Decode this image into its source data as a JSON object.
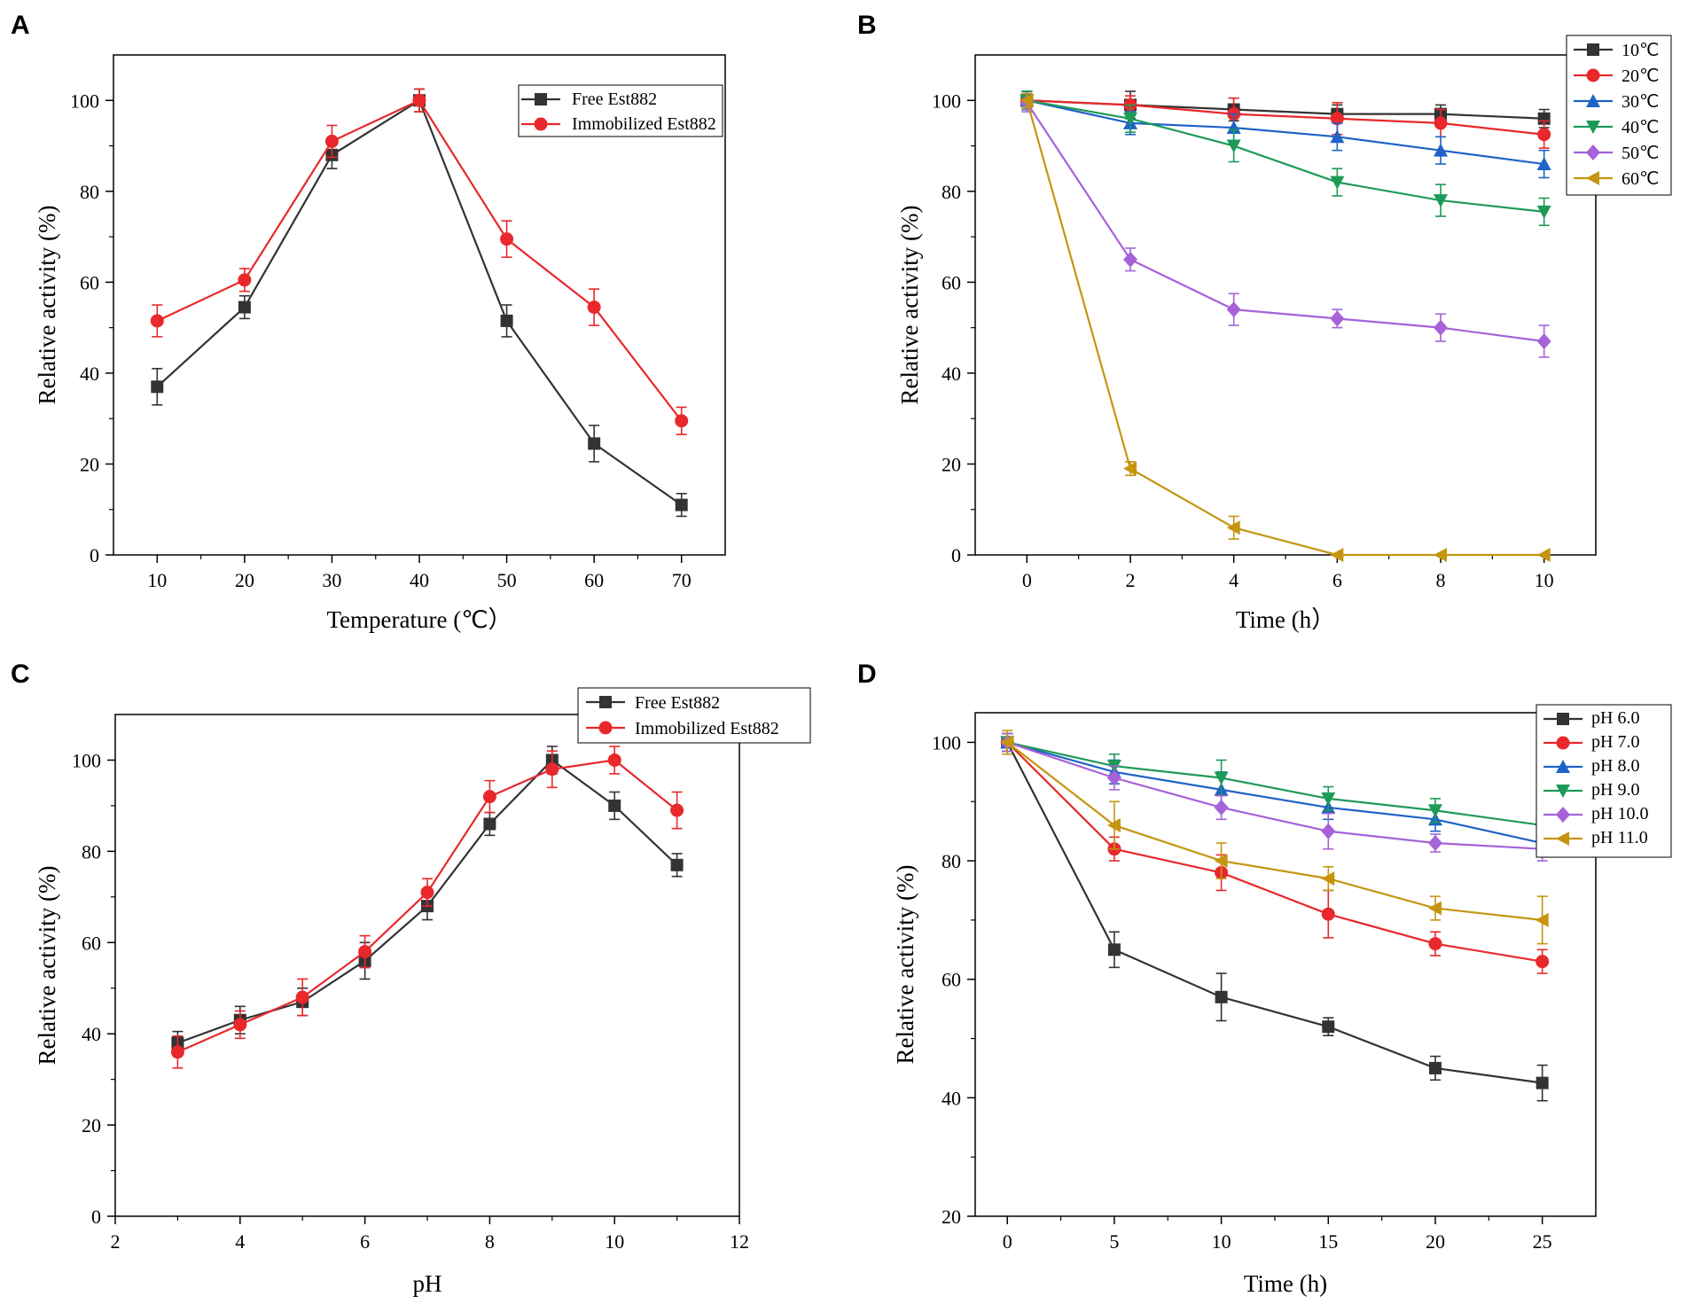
{
  "chart_data": [
    {
      "panel": "A",
      "type": "line",
      "xlabel": "Temperature (℃）",
      "ylabel": "Relative activity (%)",
      "xlim": [
        5,
        75
      ],
      "ylim": [
        0,
        110
      ],
      "xticks": [
        10,
        20,
        30,
        40,
        50,
        60,
        70
      ],
      "yticks": [
        0,
        20,
        40,
        60,
        80,
        100
      ],
      "x": [
        10,
        20,
        30,
        40,
        50,
        60,
        70
      ],
      "legend_position": "top-right-inside",
      "series": [
        {
          "name": "Free Est882",
          "color": "#333333",
          "marker": "square",
          "values": [
            37,
            54.5,
            88,
            100,
            51.5,
            24.5,
            11
          ],
          "errors": [
            4,
            2.5,
            3,
            2.5,
            3.5,
            4,
            2.5
          ]
        },
        {
          "name": "Immobilized Est882",
          "color": "#e8282b",
          "marker": "circle",
          "values": [
            51.5,
            60.5,
            91,
            100,
            69.5,
            54.5,
            29.5
          ],
          "errors": [
            3.5,
            2.5,
            3.5,
            2.5,
            4,
            4,
            3
          ]
        }
      ]
    },
    {
      "panel": "B",
      "type": "line",
      "xlabel": "Time (h）",
      "ylabel": "Relative activity (%)",
      "xlim": [
        -1,
        11
      ],
      "ylim": [
        0,
        110
      ],
      "xticks": [
        0,
        2,
        4,
        6,
        8,
        10
      ],
      "yticks": [
        0,
        20,
        40,
        60,
        80,
        100
      ],
      "x": [
        0,
        2,
        4,
        6,
        8,
        10
      ],
      "legend_position": "top-right",
      "series": [
        {
          "name": "10℃",
          "color": "#333333",
          "marker": "square",
          "values": [
            100,
            99,
            98,
            97,
            97,
            96
          ],
          "errors": [
            2,
            3,
            2.5,
            2,
            2,
            2
          ]
        },
        {
          "name": "20℃",
          "color": "#e8282b",
          "marker": "circle",
          "values": [
            100,
            99,
            97,
            96,
            95,
            92.5
          ],
          "errors": [
            1.5,
            2,
            3.5,
            3.5,
            3,
            3
          ]
        },
        {
          "name": "30℃",
          "color": "#1f63c6",
          "marker": "triangle-up",
          "values": [
            100,
            95,
            94,
            92,
            89,
            86
          ],
          "errors": [
            2,
            2.5,
            3,
            3,
            3,
            3
          ]
        },
        {
          "name": "40℃",
          "color": "#1e9a57",
          "marker": "triangle-down",
          "values": [
            100,
            96,
            90,
            82,
            78,
            75.5
          ],
          "errors": [
            2,
            3,
            3.5,
            3,
            3.5,
            3
          ]
        },
        {
          "name": "50℃",
          "color": "#a662d9",
          "marker": "diamond",
          "values": [
            99.5,
            65,
            54,
            52,
            50,
            47
          ],
          "errors": [
            2,
            2.5,
            3.5,
            2,
            3,
            3.5
          ]
        },
        {
          "name": "60℃",
          "color": "#c59511",
          "marker": "triangle-left",
          "values": [
            100,
            19,
            6,
            0,
            0,
            0
          ],
          "errors": [
            1.5,
            1.5,
            2.5,
            0,
            0,
            0
          ]
        }
      ]
    },
    {
      "panel": "C",
      "type": "line",
      "xlabel": "pH",
      "ylabel": "Relative activity (%)",
      "xlim": [
        2,
        12
      ],
      "ylim": [
        0,
        110
      ],
      "xticks": [
        2,
        4,
        6,
        8,
        10,
        12
      ],
      "yticks": [
        0,
        20,
        40,
        60,
        80,
        100
      ],
      "x": [
        3,
        4,
        5,
        6,
        7,
        8,
        9,
        10,
        11
      ],
      "legend_position": "top-right",
      "series": [
        {
          "name": "Free Est882",
          "color": "#333333",
          "marker": "square",
          "values": [
            38,
            43,
            47,
            56,
            68,
            86,
            100,
            90,
            77
          ],
          "errors": [
            2.5,
            3,
            3,
            4,
            3,
            2.5,
            3,
            3,
            2.5
          ]
        },
        {
          "name": "Immobilized Est882",
          "color": "#e8282b",
          "marker": "circle",
          "values": [
            36,
            42,
            48,
            58,
            71,
            92,
            98,
            100,
            89
          ],
          "errors": [
            3.5,
            3,
            4,
            3.5,
            3,
            3.5,
            4,
            3,
            4
          ]
        }
      ]
    },
    {
      "panel": "D",
      "type": "line",
      "xlabel": "Time (h)",
      "ylabel": "Relative activity (%)",
      "xlim": [
        -1.5,
        27.5
      ],
      "ylim": [
        20,
        105
      ],
      "xticks": [
        0,
        5,
        10,
        15,
        20,
        25
      ],
      "yticks": [
        20,
        40,
        60,
        80,
        100
      ],
      "x": [
        0,
        5,
        10,
        15,
        20,
        25
      ],
      "legend_position": "top-right",
      "series": [
        {
          "name": "pH 6.0",
          "color": "#333333",
          "marker": "square",
          "values": [
            100,
            65,
            57,
            52,
            45,
            42.5
          ],
          "errors": [
            1.5,
            3,
            4,
            1.5,
            2,
            3
          ]
        },
        {
          "name": "pH 7.0",
          "color": "#e8282b",
          "marker": "circle",
          "values": [
            100,
            82,
            78,
            71,
            66,
            63
          ],
          "errors": [
            1.5,
            2,
            3,
            4,
            2,
            2
          ]
        },
        {
          "name": "pH 8.0",
          "color": "#1f63c6",
          "marker": "triangle-up",
          "values": [
            100,
            95,
            92,
            89,
            87,
            83
          ],
          "errors": [
            1.5,
            2,
            3,
            2,
            2,
            2
          ]
        },
        {
          "name": "pH 9.0",
          "color": "#1e9a57",
          "marker": "triangle-down",
          "values": [
            100,
            96,
            94,
            90.5,
            88.5,
            86
          ],
          "errors": [
            1.5,
            2,
            3,
            2,
            2,
            2.5
          ]
        },
        {
          "name": "pH 10.0",
          "color": "#a662d9",
          "marker": "diamond",
          "values": [
            100,
            94,
            89,
            85,
            83,
            82
          ],
          "errors": [
            1.5,
            2,
            2,
            3,
            1.5,
            2
          ]
        },
        {
          "name": "pH 11.0",
          "color": "#c59511",
          "marker": "triangle-left",
          "values": [
            100,
            86,
            80,
            77,
            72,
            70
          ],
          "errors": [
            2,
            4,
            3,
            2,
            2,
            4
          ]
        }
      ]
    }
  ]
}
